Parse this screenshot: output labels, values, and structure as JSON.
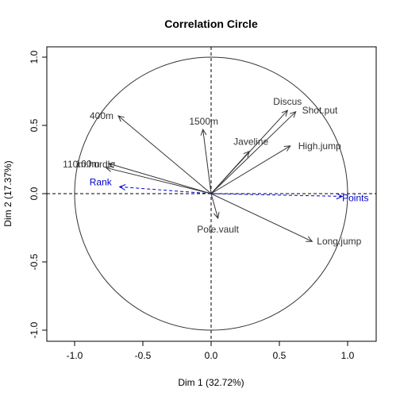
{
  "chart_data": {
    "type": "scatter",
    "title": "Correlation Circle",
    "xlabel": "Dim 1 (32.72%)",
    "ylabel": "Dim 2 (17.37%)",
    "xlim": [
      -1.0,
      1.0
    ],
    "ylim": [
      -1.0,
      1.0
    ],
    "x_ticks": [
      "-1.0",
      "-0.5",
      "0.0",
      "0.5",
      "1.0"
    ],
    "y_ticks": [
      "-1.0",
      "-0.5",
      "0.0",
      "0.5",
      "1.0"
    ],
    "unit_circle": true,
    "grid": false,
    "variables": [
      {
        "name": "100m",
        "x": -0.77,
        "y": 0.19,
        "kind": "active",
        "color": "#333333"
      },
      {
        "name": "Long.jump",
        "x": 0.74,
        "y": -0.35,
        "kind": "active",
        "color": "#333333"
      },
      {
        "name": "Shot.put",
        "x": 0.62,
        "y": 0.6,
        "kind": "active",
        "color": "#333333"
      },
      {
        "name": "High.jump",
        "x": 0.58,
        "y": 0.35,
        "kind": "active",
        "color": "#333333"
      },
      {
        "name": "400m",
        "x": -0.68,
        "y": 0.57,
        "kind": "active",
        "color": "#333333"
      },
      {
        "name": "110m.hurdle",
        "x": -0.75,
        "y": 0.22,
        "kind": "active",
        "color": "#333333"
      },
      {
        "name": "Discus",
        "x": 0.56,
        "y": 0.61,
        "kind": "active",
        "color": "#333333"
      },
      {
        "name": "Pole.vault",
        "x": 0.05,
        "y": -0.18,
        "kind": "active",
        "color": "#333333"
      },
      {
        "name": "Javeline",
        "x": 0.28,
        "y": 0.31,
        "kind": "active",
        "color": "#333333"
      },
      {
        "name": "1500m",
        "x": -0.06,
        "y": 0.47,
        "kind": "active",
        "color": "#333333"
      },
      {
        "name": "Rank",
        "x": -0.67,
        "y": 0.05,
        "kind": "supplementary",
        "color": "#0000cc"
      },
      {
        "name": "Points",
        "x": 0.96,
        "y": -0.02,
        "kind": "supplementary",
        "color": "#0000cc"
      }
    ]
  }
}
